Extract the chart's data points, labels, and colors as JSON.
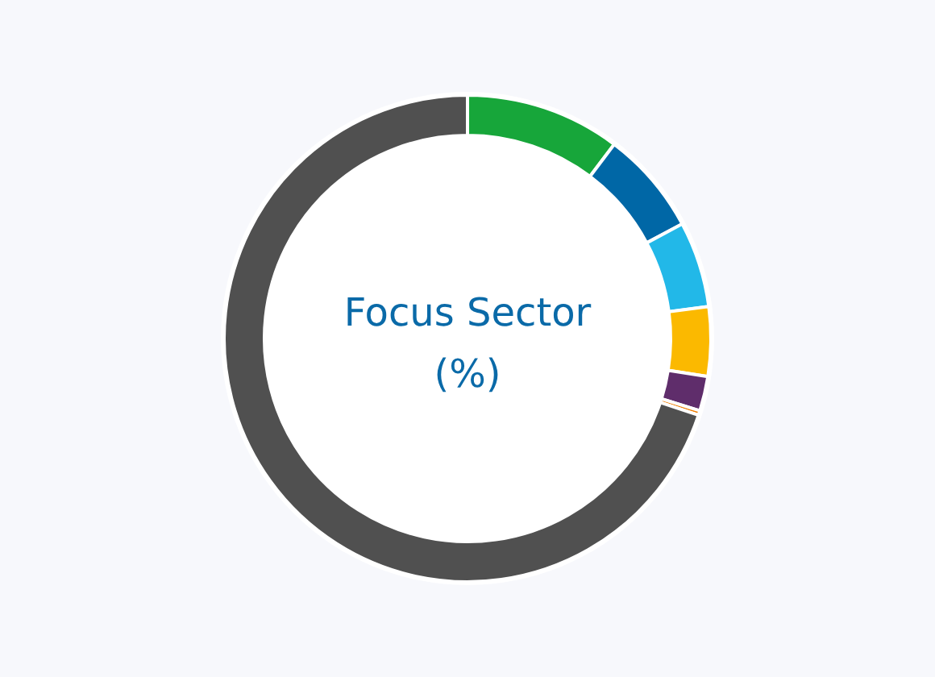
{
  "chart_data": {
    "type": "donut",
    "title": "Focus Sector (%)",
    "categories": [
      null,
      null,
      null,
      null,
      null,
      null,
      null
    ],
    "values": [
      10.3,
      6.9,
      5.7,
      4.6,
      2.3,
      0.3,
      69.9
    ],
    "colors": [
      "#17a63a",
      "#0067a6",
      "#22b8e8",
      "#fbb900",
      "#5f2d6b",
      "#f07d00",
      "#505050"
    ]
  }
}
